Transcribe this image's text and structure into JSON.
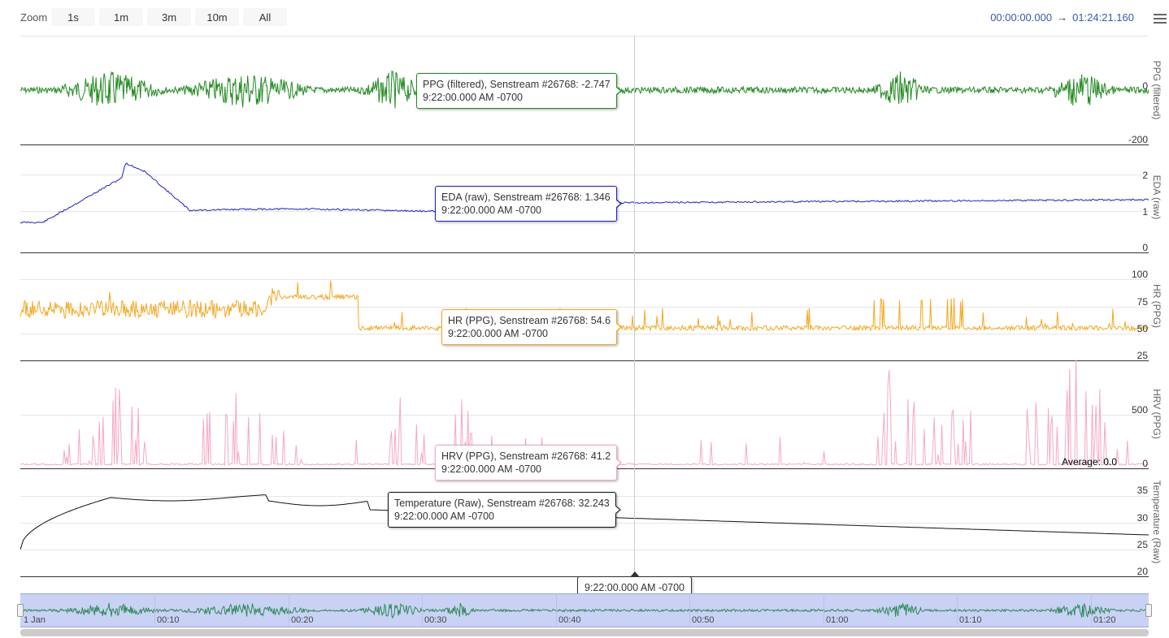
{
  "toolbar": {
    "zoom_label": "Zoom",
    "zoom_buttons": [
      "1s",
      "1m",
      "3m",
      "10m",
      "All"
    ],
    "range_start": "00:00:00.000",
    "range_arrow": "→",
    "range_end": "01:24:21.160",
    "menu_icon": "hamburger-menu-icon"
  },
  "panels": [
    {
      "name": "PPG (filtered)",
      "color": "#228B22",
      "ticks": [
        "0",
        "-200"
      ],
      "tooltip": {
        "title": "PPG (filtered), Senstream #26768: -2.747",
        "time": "9:22:00.000 AM -0700"
      }
    },
    {
      "name": "EDA (raw)",
      "color": "#1f1fcc",
      "ticks": [
        "2",
        "1",
        "0"
      ],
      "tooltip": {
        "title": "EDA (raw), Senstream #26768: 1.346",
        "time": "9:22:00.000 AM -0700"
      }
    },
    {
      "name": "HR (PPG)",
      "color": "#f5a81f",
      "ticks": [
        "100",
        "75",
        "50",
        "25"
      ],
      "tooltip": {
        "title": "HR (PPG), Senstream #26768: 54.6",
        "time": "9:22:00.000 AM -0700"
      }
    },
    {
      "name": "HRV (PPG)",
      "color": "#f7a8c0",
      "ticks": [
        "500",
        "0"
      ],
      "tooltip": {
        "title": "HRV (PPG), Senstream #26768: 41.2",
        "time": "9:22:00.000 AM -0700"
      },
      "average": "Average: 0.0"
    },
    {
      "name": "Temperature (Raw)",
      "color": "#111111",
      "ticks": [
        "35",
        "30",
        "25",
        "20"
      ],
      "tooltip": {
        "title": "Temperature (Raw), Senstream #26768: 32.243",
        "time": "9:22:00.000 AM -0700"
      }
    }
  ],
  "crosshair_time": "9:22:00.000 AM -0700",
  "navigator": {
    "series_color": "#2e8b57",
    "ticks": [
      "1 Jan",
      "00:10",
      "00:20",
      "00:30",
      "00:40",
      "00:50",
      "01:00",
      "01:10",
      "01:20"
    ]
  }
}
